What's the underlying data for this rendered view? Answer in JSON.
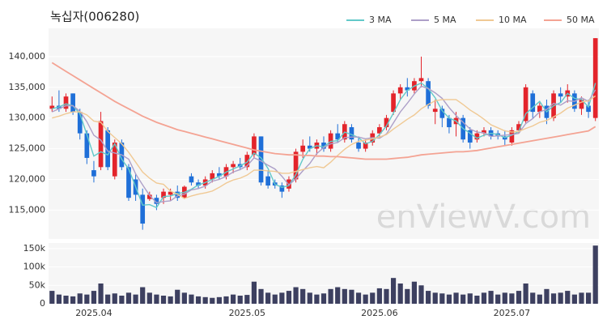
{
  "chart_data": [
    {
      "type": "candlestick",
      "title": "녹십자(006280)",
      "watermark": "enViewV.com",
      "up_color": "#e3242b",
      "down_color": "#1f6fd8",
      "open": [
        131500,
        132000,
        131500,
        134000,
        131000,
        127500,
        121500,
        122000,
        128000,
        120500,
        126000,
        122000,
        120000,
        117500,
        116800,
        117000,
        117000,
        117500,
        118000,
        117000,
        120500,
        119500,
        119000,
        120000,
        121000,
        120500,
        122000,
        122500,
        122000,
        124000,
        127000,
        120500,
        119500,
        119000,
        118500,
        120000,
        124500,
        125500,
        125000,
        126000,
        125000,
        127500,
        126500,
        128500,
        126000,
        125000,
        126000,
        127500,
        128500,
        131000,
        134000,
        135000,
        134500,
        136000,
        136000,
        131000,
        131500,
        130000,
        129000,
        130000,
        128000,
        126500,
        127500,
        128000,
        127500,
        127000,
        126000,
        128000,
        129500,
        134000,
        131000,
        132000,
        130000,
        134000,
        133500,
        134000,
        131500,
        132000,
        130000
      ],
      "high": [
        133500,
        134500,
        134000,
        134000,
        131500,
        128000,
        123000,
        131000,
        128500,
        126500,
        126500,
        122500,
        121000,
        118500,
        118000,
        117500,
        118500,
        118500,
        119000,
        119000,
        121000,
        120000,
        120500,
        121500,
        122000,
        122500,
        123000,
        123500,
        124500,
        127500,
        127000,
        121500,
        120000,
        119500,
        120500,
        125000,
        126500,
        127000,
        126500,
        127000,
        128000,
        129000,
        129500,
        129000,
        127000,
        126500,
        128000,
        129000,
        130500,
        134500,
        135500,
        136500,
        136500,
        140000,
        136500,
        133000,
        132000,
        130500,
        131000,
        130500,
        128500,
        128000,
        128500,
        128500,
        128000,
        128000,
        128500,
        129500,
        135500,
        134500,
        132500,
        133000,
        134500,
        135000,
        135500,
        134500,
        133500,
        133000,
        143000
      ],
      "low": [
        131000,
        131000,
        131000,
        130500,
        126500,
        122500,
        119500,
        121500,
        121500,
        120000,
        121500,
        116500,
        116500,
        111800,
        116500,
        115000,
        116000,
        116500,
        116500,
        116800,
        119000,
        118500,
        118500,
        119500,
        120000,
        120000,
        121000,
        121500,
        121500,
        123500,
        119000,
        118500,
        118500,
        117000,
        118000,
        119500,
        123500,
        124500,
        124000,
        124500,
        124500,
        126000,
        126000,
        126000,
        124500,
        124500,
        125500,
        127000,
        128000,
        130500,
        133000,
        133500,
        134000,
        135000,
        131500,
        129000,
        128500,
        127500,
        127000,
        126000,
        125000,
        126000,
        127000,
        126500,
        126500,
        125500,
        125500,
        127500,
        129000,
        130000,
        130000,
        129000,
        129500,
        132500,
        132500,
        131000,
        130500,
        130000,
        129500
      ],
      "close": [
        132000,
        131500,
        133500,
        131000,
        127500,
        123500,
        120500,
        129500,
        122000,
        126000,
        122000,
        117000,
        117500,
        112800,
        117500,
        116000,
        118000,
        118000,
        117000,
        118800,
        119500,
        119000,
        120000,
        121000,
        120500,
        122000,
        122500,
        122000,
        124000,
        127000,
        119500,
        119000,
        119000,
        118000,
        120000,
        124500,
        125500,
        125000,
        126000,
        125000,
        127500,
        126500,
        129000,
        126500,
        125000,
        126000,
        127500,
        128500,
        130000,
        134000,
        135000,
        134500,
        136000,
        136500,
        132000,
        131500,
        130000,
        128500,
        130000,
        126500,
        126000,
        127500,
        128000,
        127000,
        127000,
        126500,
        128000,
        129000,
        135000,
        131000,
        132000,
        130000,
        134000,
        133500,
        134500,
        131500,
        133000,
        131000,
        143000
      ],
      "series": [
        {
          "name": "3 MA",
          "color": "#62c9c9",
          "values": [
            131500,
            131800,
            132300,
            132000,
            130700,
            127300,
            123800,
            124500,
            124000,
            125800,
            123300,
            121700,
            118800,
            115800,
            115900,
            115400,
            117200,
            117300,
            117700,
            117900,
            118400,
            119100,
            119500,
            120000,
            120500,
            121200,
            121700,
            122200,
            122800,
            124300,
            123500,
            121800,
            119200,
            118700,
            119000,
            120800,
            123300,
            125000,
            125500,
            125300,
            126200,
            126300,
            127700,
            127300,
            126800,
            125800,
            126200,
            127300,
            128700,
            130800,
            133000,
            134500,
            135200,
            135700,
            134800,
            133300,
            131200,
            130000,
            129500,
            128300,
            127500,
            126700,
            127200,
            127500,
            127300,
            126800,
            127200,
            127800,
            130700,
            131700,
            132700,
            131000,
            132000,
            132500,
            134000,
            133200,
            133000,
            131800,
            135700
          ]
        },
        {
          "name": "5 MA",
          "color": "#ad9fc8",
          "values": [
            131000,
            131500,
            132000,
            132000,
            131100,
            129400,
            127200,
            126400,
            124600,
            124300,
            124000,
            123300,
            120900,
            119100,
            117400,
            116200,
            116400,
            116500,
            117300,
            117600,
            118300,
            118500,
            118900,
            119700,
            120000,
            120500,
            121200,
            121600,
            122200,
            123500,
            123000,
            122300,
            121700,
            120500,
            119100,
            120100,
            121400,
            122600,
            124200,
            125200,
            125800,
            126000,
            126800,
            126900,
            126900,
            126600,
            126800,
            126700,
            127400,
            129200,
            131000,
            132400,
            133900,
            135200,
            134800,
            134100,
            133200,
            131700,
            130400,
            129300,
            128200,
            127700,
            127600,
            127000,
            127100,
            127200,
            127300,
            127500,
            129100,
            129900,
            131000,
            131400,
            132400,
            132100,
            132800,
            132700,
            133300,
            132700,
            134600
          ]
        },
        {
          "name": "10 MA",
          "color": "#f0c994",
          "values": [
            130000,
            130300,
            130700,
            131000,
            131000,
            130500,
            129500,
            129300,
            127800,
            126800,
            125800,
            124400,
            122800,
            121200,
            120200,
            119400,
            119200,
            118100,
            117600,
            116900,
            117300,
            117600,
            117800,
            118100,
            118700,
            119400,
            119900,
            120200,
            120700,
            121500,
            121500,
            121400,
            121300,
            121000,
            121000,
            121300,
            121600,
            121900,
            122100,
            121900,
            122800,
            123900,
            124900,
            125700,
            126200,
            126400,
            126600,
            126900,
            127300,
            128200,
            129000,
            129800,
            130500,
            131500,
            132200,
            132800,
            133000,
            133000,
            133000,
            132200,
            131300,
            130600,
            129800,
            128900,
            128400,
            127900,
            127700,
            127800,
            128300,
            128700,
            129300,
            129600,
            130200,
            130800,
            131600,
            132100,
            132600,
            132800,
            133600
          ]
        },
        {
          "name": "50 MA",
          "color": "#f4a393",
          "values": [
            139000,
            138300,
            137600,
            136900,
            136200,
            135500,
            134800,
            134100,
            133400,
            132700,
            132100,
            131500,
            130900,
            130300,
            129800,
            129300,
            128900,
            128500,
            128100,
            127800,
            127500,
            127200,
            126900,
            126600,
            126300,
            126000,
            125700,
            125400,
            125100,
            124800,
            124600,
            124400,
            124200,
            124100,
            124000,
            124000,
            123900,
            123900,
            123800,
            123800,
            123700,
            123700,
            123600,
            123500,
            123400,
            123300,
            123300,
            123300,
            123300,
            123400,
            123500,
            123600,
            123800,
            124000,
            124100,
            124200,
            124300,
            124400,
            124500,
            124500,
            124600,
            124700,
            124900,
            125100,
            125300,
            125500,
            125700,
            125900,
            126100,
            126300,
            126500,
            126700,
            126900,
            127100,
            127300,
            127500,
            127700,
            127900,
            128600
          ]
        }
      ],
      "ylim": [
        110300,
        144600
      ],
      "yticks": [
        {
          "value": 115000,
          "label": "115,000"
        },
        {
          "value": 120000,
          "label": "120,000"
        },
        {
          "value": 125000,
          "label": "125,000"
        },
        {
          "value": 130000,
          "label": "130,000"
        },
        {
          "value": 135000,
          "label": "135,000"
        },
        {
          "value": 140000,
          "label": "140,000"
        }
      ],
      "grid": true
    },
    {
      "type": "bar",
      "color": "#3d4060",
      "categories": [
        null,
        null,
        null,
        null,
        null,
        null,
        "2025.04",
        null,
        null,
        null,
        null,
        null,
        null,
        null,
        null,
        null,
        null,
        null,
        null,
        null,
        null,
        null,
        null,
        null,
        null,
        null,
        null,
        null,
        "2025.05",
        null,
        null,
        null,
        null,
        null,
        null,
        null,
        null,
        null,
        null,
        null,
        null,
        null,
        null,
        null,
        null,
        null,
        null,
        "2025.06",
        null,
        null,
        null,
        null,
        null,
        null,
        null,
        null,
        null,
        null,
        null,
        null,
        null,
        null,
        null,
        null,
        null,
        null,
        "2025.07",
        null,
        null,
        null,
        null,
        null,
        null,
        null,
        null,
        null,
        null,
        null,
        null
      ],
      "values": [
        35000,
        25000,
        22000,
        20000,
        28000,
        25000,
        35000,
        55000,
        25000,
        28000,
        22000,
        30000,
        25000,
        45000,
        30000,
        25000,
        22000,
        20000,
        38000,
        30000,
        25000,
        20000,
        18000,
        16000,
        18000,
        20000,
        25000,
        22000,
        24000,
        60000,
        40000,
        30000,
        25000,
        30000,
        35000,
        45000,
        40000,
        30000,
        25000,
        28000,
        40000,
        45000,
        40000,
        38000,
        30000,
        25000,
        30000,
        42000,
        40000,
        70000,
        55000,
        40000,
        60000,
        50000,
        35000,
        30000,
        28000,
        25000,
        30000,
        25000,
        28000,
        22000,
        30000,
        35000,
        25000,
        30000,
        28000,
        35000,
        55000,
        30000,
        25000,
        40000,
        28000,
        30000,
        35000,
        25000,
        30000,
        30000,
        158000
      ],
      "ylim": [
        0,
        165000
      ],
      "yticks": [
        0,
        {
          "value": 50000,
          "label": "50k"
        },
        {
          "value": 100000,
          "label": "100k"
        },
        {
          "value": 150000,
          "label": "150k"
        }
      ],
      "grid": true
    }
  ]
}
